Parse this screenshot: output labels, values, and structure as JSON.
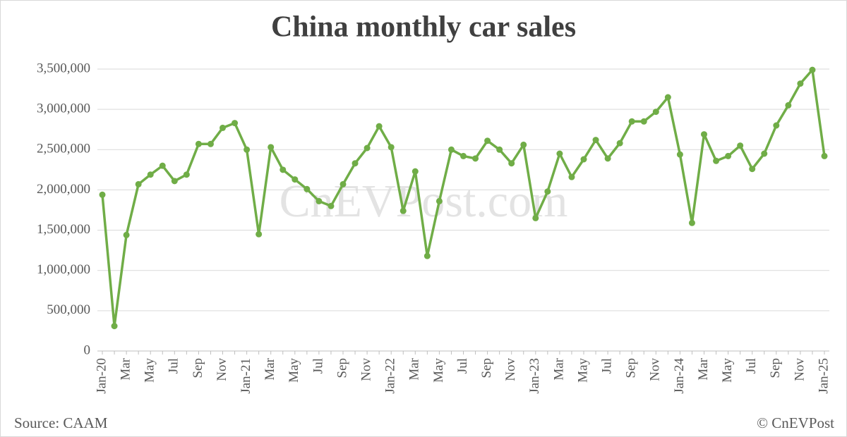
{
  "chart_data": {
    "type": "line",
    "title": "China monthly car sales",
    "watermark": "CnEVPost.com",
    "source": "Source: CAAM",
    "credit": "© CnEVPost",
    "categories": [
      "Jan-20",
      null,
      "Mar",
      null,
      "May",
      null,
      "Jul",
      null,
      "Sep",
      null,
      "Nov",
      null,
      "Jan-21",
      null,
      "Mar",
      null,
      "May",
      null,
      "Jul",
      null,
      "Sep",
      null,
      "Nov",
      null,
      "Jan-22",
      null,
      "Mar",
      null,
      "May",
      null,
      "Jul",
      null,
      "Sep",
      null,
      "Nov",
      null,
      "Jan-23",
      null,
      "Mar",
      null,
      "May",
      null,
      "Jul",
      null,
      "Sep",
      null,
      "Nov",
      null,
      "Jan-24",
      null,
      "Mar",
      null,
      "May",
      null,
      "Jul",
      null,
      "Sep",
      null,
      "Nov",
      null,
      "Jan-25"
    ],
    "series": [
      {
        "name": "Car sales",
        "color": "#70ad47",
        "values": [
          1940000,
          310000,
          1440000,
          2070000,
          2190000,
          2300000,
          2110000,
          2190000,
          2570000,
          2570000,
          2770000,
          2830000,
          2500000,
          1450000,
          2530000,
          2250000,
          2130000,
          2010000,
          1860000,
          1800000,
          2070000,
          2330000,
          2520000,
          2790000,
          2530000,
          1740000,
          2230000,
          1180000,
          1860000,
          2500000,
          2420000,
          2390000,
          2610000,
          2500000,
          2330000,
          2560000,
          1650000,
          1980000,
          2450000,
          2160000,
          2380000,
          2620000,
          2390000,
          2580000,
          2850000,
          2850000,
          2970000,
          3150000,
          2440000,
          1590000,
          2690000,
          2360000,
          2420000,
          2550000,
          2260000,
          2450000,
          2800000,
          3050000,
          3320000,
          3490000,
          2420000
        ]
      }
    ],
    "ylim": [
      0,
      3500000
    ],
    "yticks": [
      0,
      {
        "value": 500000,
        "label": "500,000"
      },
      {
        "value": 1000000,
        "label": "1,000,000"
      },
      {
        "value": 1500000,
        "label": "1,500,000"
      },
      {
        "value": 2000000,
        "label": "2,000,000"
      },
      {
        "value": 2500000,
        "label": "2,500,000"
      },
      {
        "value": 3000000,
        "label": "3,000,000"
      },
      {
        "value": 3500000,
        "label": "3,500,000"
      }
    ],
    "grid": true
  }
}
